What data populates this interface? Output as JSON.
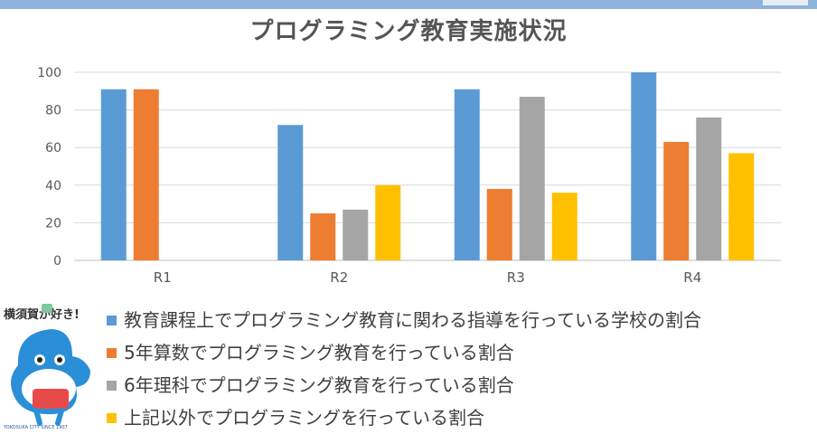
{
  "chart_data": {
    "type": "bar",
    "title": "プログラミング教育実施状況",
    "categories": [
      "R1",
      "R2",
      "R3",
      "R4"
    ],
    "series": [
      {
        "name": "教育課程上でプログラミング教育に関わる指導を行っている学校の割合",
        "color": "#5b9bd5",
        "values": [
          91,
          72,
          91,
          100
        ]
      },
      {
        "name": "5年算数でプログラミング教育を行っている割合",
        "color": "#ed7d31",
        "values": [
          91,
          25,
          38,
          63
        ]
      },
      {
        "name": "6年理科でプログラミング教育を行っている割合",
        "color": "#a5a5a5",
        "values": [
          null,
          27,
          87,
          76
        ]
      },
      {
        "name": "上記以外でプログラミングを行っている割合",
        "color": "#ffc000",
        "values": [
          null,
          40,
          36,
          57
        ]
      }
    ],
    "ylim": [
      0,
      100
    ],
    "yticks": [
      0,
      20,
      40,
      60,
      80,
      100
    ],
    "grid": true,
    "legend_position": "bottom"
  },
  "mascot": {
    "logo_text": "横須賀が好き!",
    "badge_text": "YOKOSUKA CITY SINCE 1907"
  }
}
